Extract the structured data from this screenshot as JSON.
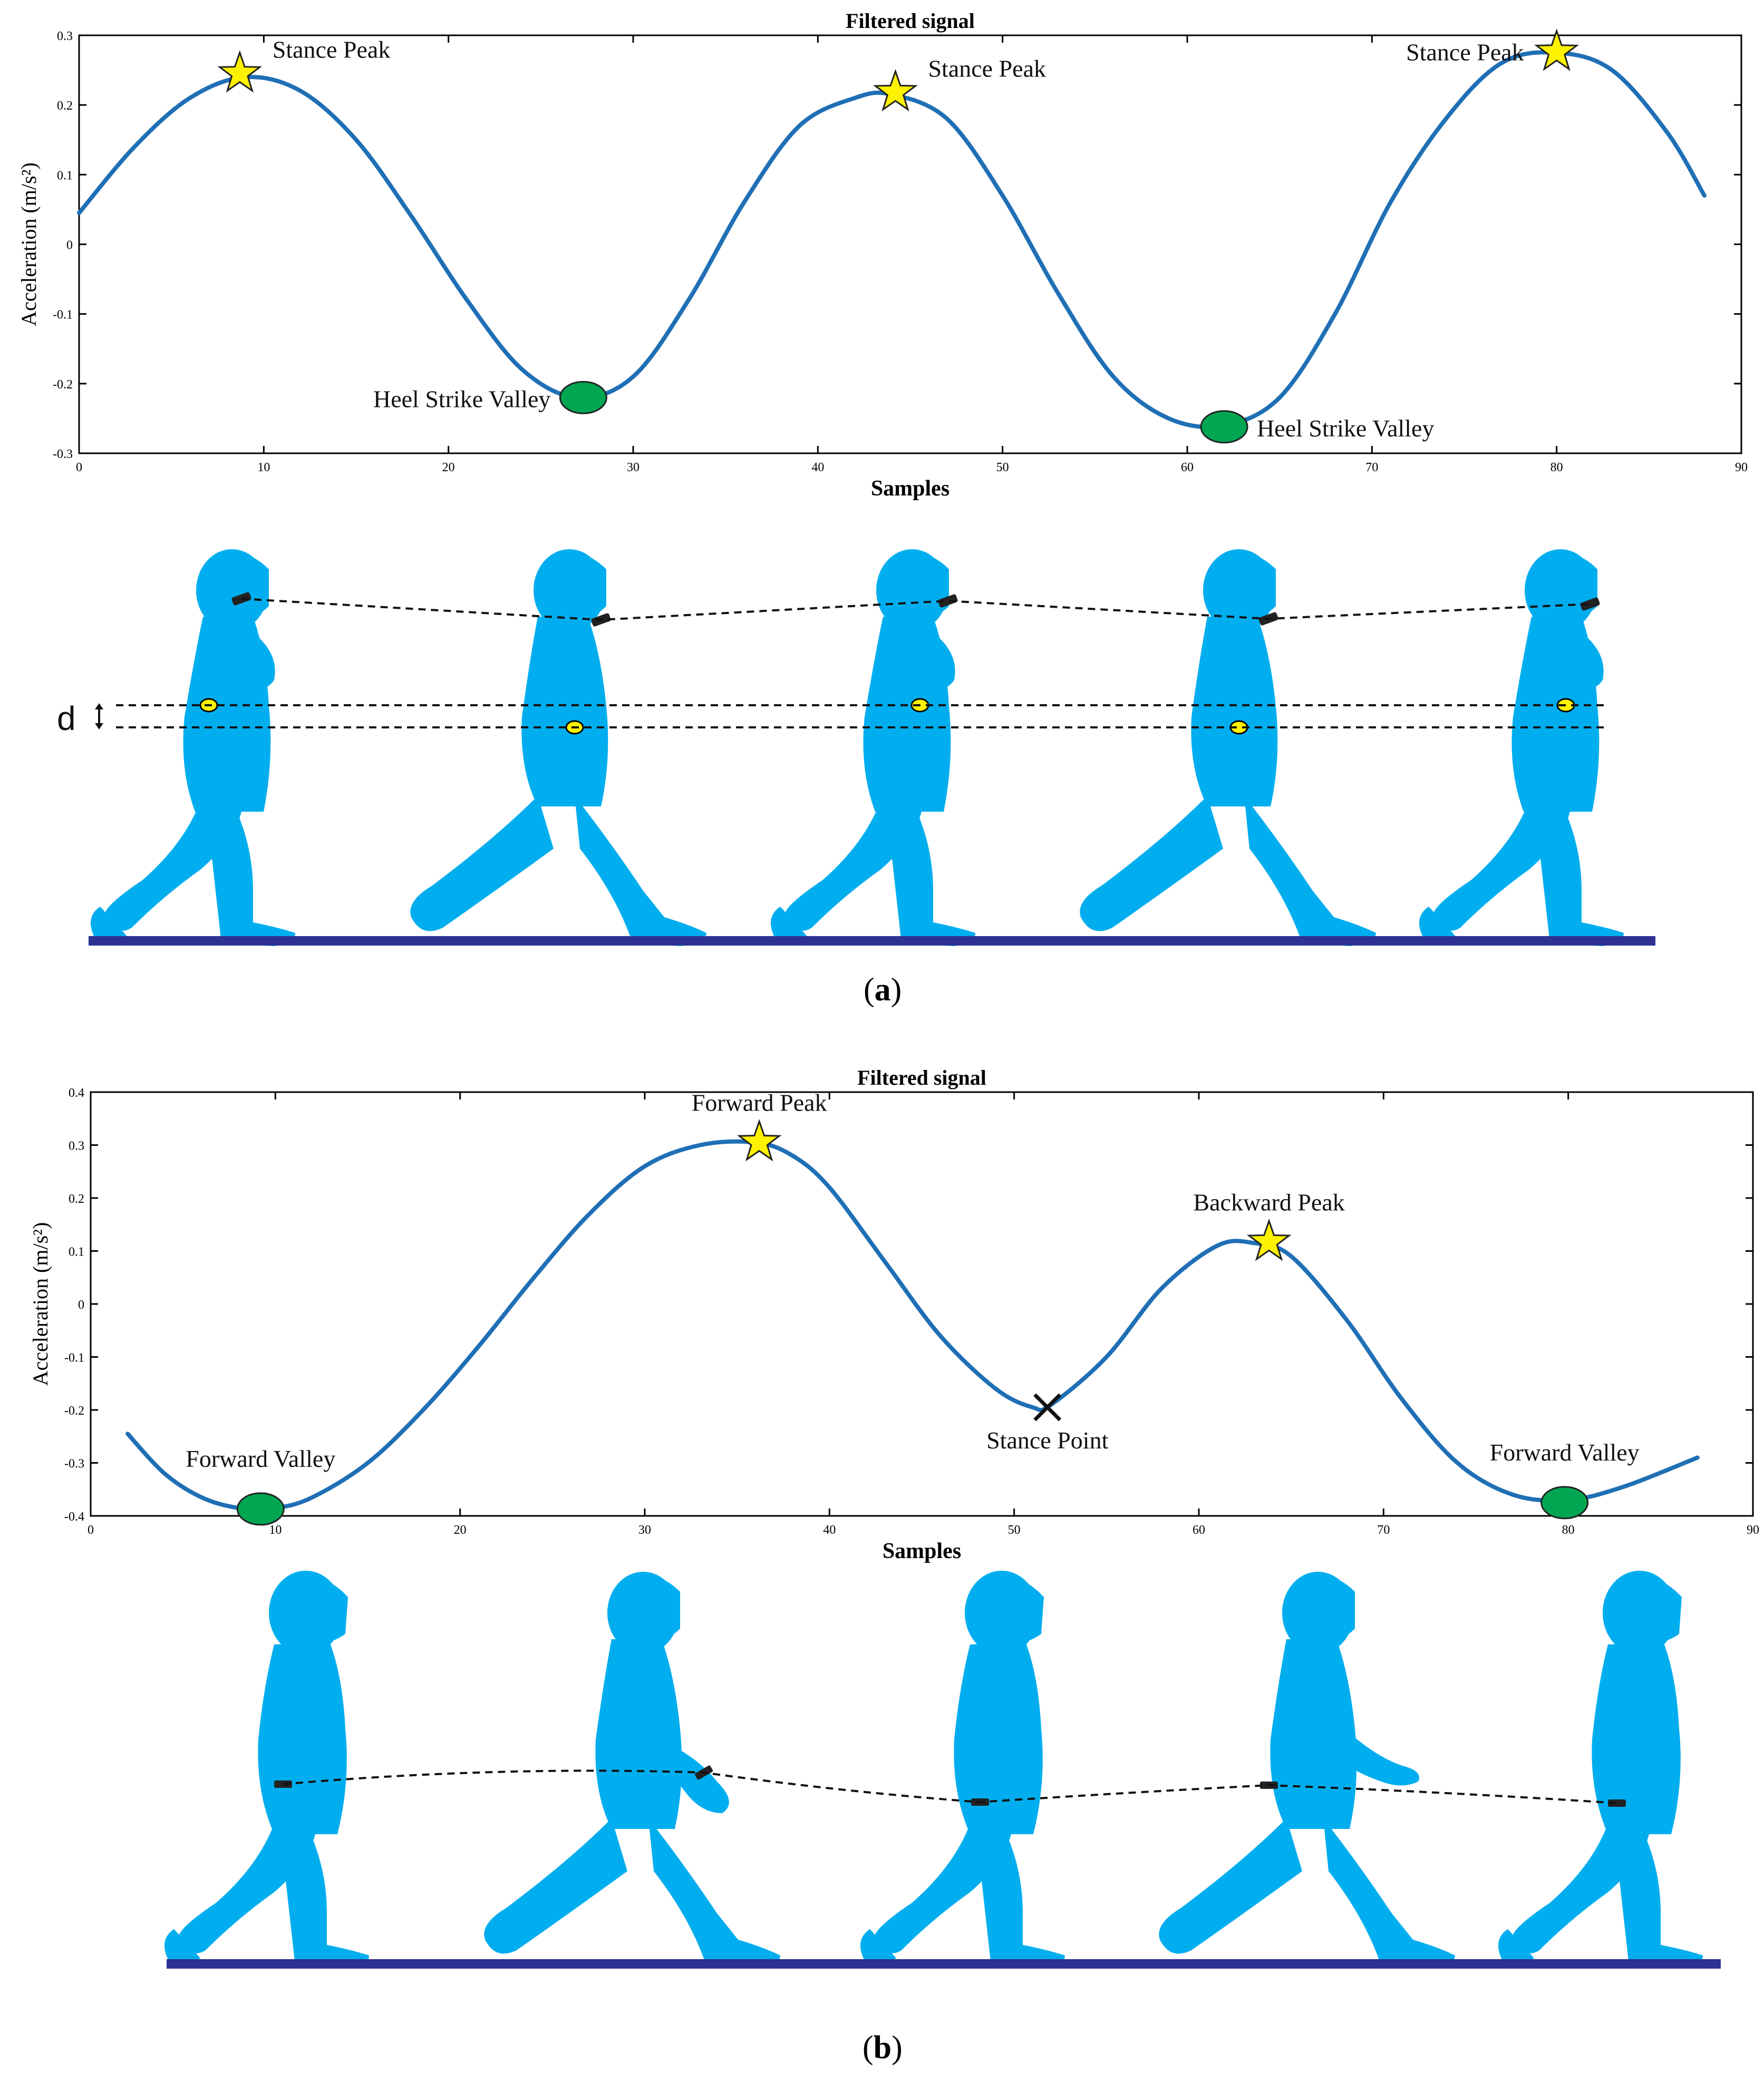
{
  "chart_data": [
    {
      "type": "line",
      "title": "Filtered signal",
      "xlabel": "Samples",
      "ylabel": "Acceleration (m/s²)",
      "xlim": [
        0,
        90
      ],
      "ylim": [
        -0.3,
        0.3
      ],
      "xticks": [
        0,
        10,
        20,
        30,
        40,
        50,
        60,
        70,
        80,
        90
      ],
      "yticks": [
        -0.3,
        -0.2,
        -0.1,
        0,
        0.1,
        0.2,
        0.3
      ],
      "series_color": "#1f6fb5",
      "series": [
        {
          "x": [
            0,
            3,
            6,
            9,
            12,
            15,
            18,
            21,
            24,
            27,
            30,
            33,
            36,
            39,
            42,
            44,
            47,
            50,
            53,
            56,
            59,
            62,
            65,
            68,
            71,
            74,
            77,
            80,
            83,
            86,
            88
          ],
          "values": [
            0.045,
            0.14,
            0.21,
            0.24,
            0.22,
            0.15,
            0.04,
            -0.08,
            -0.18,
            -0.22,
            -0.19,
            -0.08,
            0.06,
            0.17,
            0.21,
            0.215,
            0.18,
            0.07,
            -0.07,
            -0.19,
            -0.25,
            -0.26,
            -0.22,
            -0.1,
            0.06,
            0.18,
            0.26,
            0.275,
            0.25,
            0.16,
            0.07
          ]
        }
      ],
      "markers": [
        {
          "kind": "star",
          "x": 8.7,
          "y": 0.245,
          "label": "Stance Peak",
          "label_side": "right"
        },
        {
          "kind": "star",
          "x": 44.2,
          "y": 0.218,
          "label": "Stance Peak",
          "label_side": "right"
        },
        {
          "kind": "star",
          "x": 80,
          "y": 0.276,
          "label": "Stance Peak",
          "label_side": "left"
        },
        {
          "kind": "ellipse",
          "x": 27.3,
          "y": -0.22,
          "label": "Heel Strike Valley",
          "label_side": "left"
        },
        {
          "kind": "ellipse",
          "x": 62,
          "y": -0.262,
          "label": "Heel Strike Valley",
          "label_side": "right"
        }
      ],
      "panel_label": {
        "open": "(",
        "letter": "a",
        "close": ")"
      },
      "d_label": "d"
    },
    {
      "type": "line",
      "title": "Filtered signal",
      "xlabel": "Samples",
      "ylabel": "Acceleration (m/s²)",
      "xlim": [
        0,
        90
      ],
      "ylim": [
        -0.4,
        0.4
      ],
      "xticks": [
        0,
        10,
        20,
        30,
        40,
        50,
        60,
        70,
        80,
        90
      ],
      "yticks": [
        -0.4,
        -0.3,
        -0.2,
        -0.1,
        0,
        0.1,
        0.2,
        0.3,
        0.4
      ],
      "series_color": "#1f6fb5",
      "series": [
        {
          "x": [
            2,
            4,
            6,
            8,
            10,
            12,
            15,
            18,
            21,
            24,
            27,
            30,
            33,
            36,
            38,
            40,
            43,
            46,
            49,
            51,
            52,
            55,
            58,
            61,
            63,
            65,
            68,
            71,
            74,
            77,
            80,
            83,
            87
          ],
          "values": [
            -0.245,
            -0.32,
            -0.365,
            -0.385,
            -0.385,
            -0.365,
            -0.3,
            -0.2,
            -0.08,
            0.05,
            0.17,
            0.26,
            0.3,
            0.305,
            0.28,
            0.22,
            0.08,
            -0.06,
            -0.16,
            -0.195,
            -0.19,
            -0.1,
            0.03,
            0.11,
            0.115,
            0.09,
            -0.03,
            -0.18,
            -0.3,
            -0.36,
            -0.37,
            -0.345,
            -0.29
          ]
        }
      ],
      "markers": [
        {
          "kind": "star",
          "x": 36.2,
          "y": 0.305,
          "label": "Forward Peak",
          "label_side": "above"
        },
        {
          "kind": "star",
          "x": 63.8,
          "y": 0.117,
          "label": "Backward Peak",
          "label_side": "above"
        },
        {
          "kind": "cross",
          "x": 51.8,
          "y": -0.195,
          "label": "Stance Point",
          "label_side": "below"
        },
        {
          "kind": "ellipse",
          "x": 9.2,
          "y": -0.387,
          "label": "Forward Valley",
          "label_side": "above"
        },
        {
          "kind": "ellipse",
          "x": 79.8,
          "y": -0.375,
          "label": "Forward Valley",
          "label_side": "above"
        }
      ],
      "panel_label": {
        "open": "(",
        "letter": "b",
        "close": ")"
      }
    }
  ],
  "colors": {
    "walker": "#00aeef",
    "ground": "#2e3192",
    "star_fill": "#fff200",
    "valley_fill": "#00a651",
    "sensor_fill": "#fff200"
  },
  "illustrations": {
    "a": {
      "figure_count": 5,
      "sensor": "phone-at-ear and belt sensor"
    },
    "b": {
      "figure_count": 5,
      "sensor": "wrist sensor"
    }
  }
}
